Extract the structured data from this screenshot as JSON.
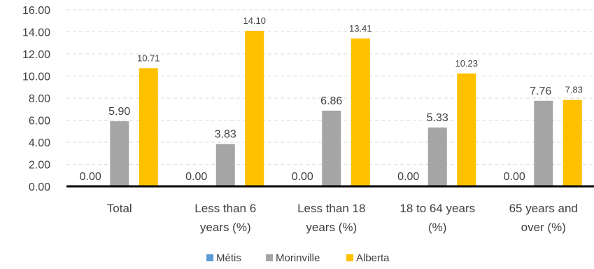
{
  "chart_data": {
    "type": "bar",
    "title": "",
    "xlabel": "",
    "ylabel": "",
    "ylim": [
      0,
      16
    ],
    "y_tick_step": 2,
    "y_tick_labels": [
      "0.00",
      "2.00",
      "4.00",
      "6.00",
      "8.00",
      "10.00",
      "12.00",
      "14.00",
      "16.00"
    ],
    "grid": true,
    "legend_position": "bottom",
    "categories": [
      [
        "Total"
      ],
      [
        "Less than 6",
        "years (%)"
      ],
      [
        "Less than 18",
        "years (%)"
      ],
      [
        "18 to 64 years",
        "(%)"
      ],
      [
        "65 years and",
        "over (%)"
      ]
    ],
    "series": [
      {
        "name": "Métis",
        "color": "#5B9BD5",
        "values": [
          0.0,
          0.0,
          0.0,
          0.0,
          0.0
        ],
        "labels": [
          "0.00",
          "0.00",
          "0.00",
          "0.00",
          "0.00"
        ],
        "label_style": "large"
      },
      {
        "name": "Morinville",
        "color": "#A5A5A5",
        "values": [
          5.9,
          3.83,
          6.86,
          5.33,
          7.76
        ],
        "labels": [
          "5.90",
          "3.83",
          "6.86",
          "5.33",
          "7.76"
        ],
        "label_style": "large"
      },
      {
        "name": "Alberta",
        "color": "#FFC000",
        "values": [
          10.71,
          14.1,
          13.41,
          10.23,
          7.83
        ],
        "labels": [
          "10.71",
          "14.10",
          "13.41",
          "10.23",
          "7.83"
        ],
        "label_style": "small"
      }
    ]
  }
}
